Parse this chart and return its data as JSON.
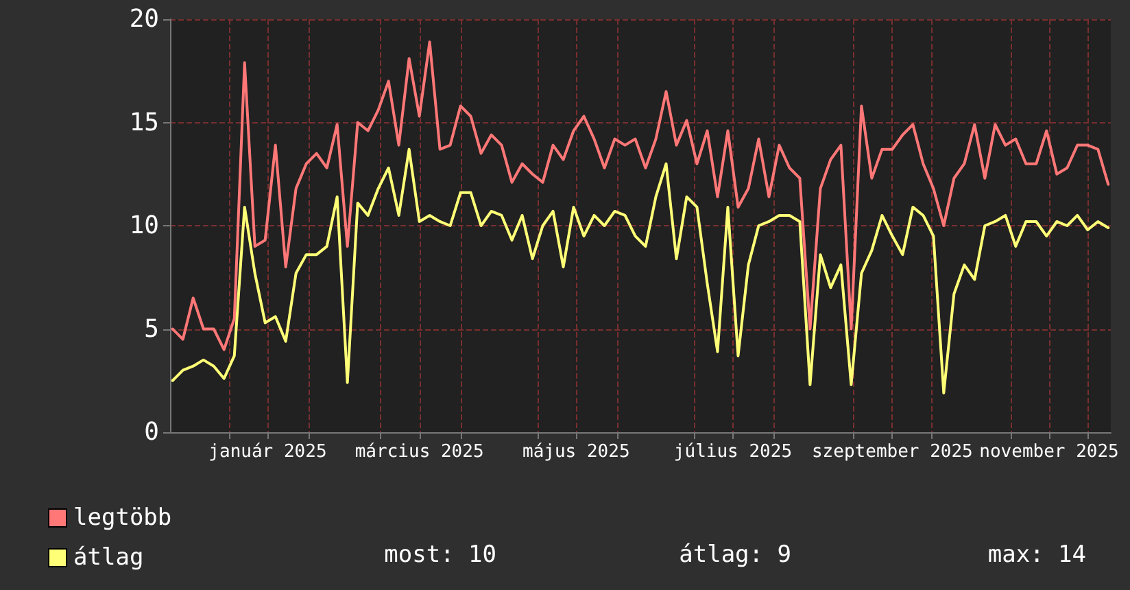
{
  "chart_data": {
    "type": "line",
    "x": [
      "2024-12-10",
      "2024-12-14",
      "2024-12-18",
      "2024-12-22",
      "2024-12-26",
      "2024-12-30",
      "2025-01-03",
      "2025-01-07",
      "2025-01-11",
      "2025-01-15",
      "2025-01-19",
      "2025-01-23",
      "2025-01-27",
      "2025-01-31",
      "2025-02-04",
      "2025-02-08",
      "2025-02-12",
      "2025-02-16",
      "2025-02-20",
      "2025-02-24",
      "2025-02-28",
      "2025-03-04",
      "2025-03-08",
      "2025-03-12",
      "2025-03-16",
      "2025-03-20",
      "2025-03-24",
      "2025-03-28",
      "2025-04-01",
      "2025-04-05",
      "2025-04-09",
      "2025-04-13",
      "2025-04-17",
      "2025-04-21",
      "2025-04-25",
      "2025-04-29",
      "2025-05-03",
      "2025-05-07",
      "2025-05-11",
      "2025-05-15",
      "2025-05-19",
      "2025-05-23",
      "2025-05-27",
      "2025-05-31",
      "2025-06-04",
      "2025-06-08",
      "2025-06-12",
      "2025-06-16",
      "2025-06-20",
      "2025-06-24",
      "2025-06-28",
      "2025-07-02",
      "2025-07-06",
      "2025-07-10",
      "2025-07-14",
      "2025-07-18",
      "2025-07-22",
      "2025-07-26",
      "2025-07-30",
      "2025-08-03",
      "2025-08-07",
      "2025-08-11",
      "2025-08-15",
      "2025-08-19",
      "2025-08-23",
      "2025-08-27",
      "2025-08-31",
      "2025-09-04",
      "2025-09-08",
      "2025-09-12",
      "2025-09-16",
      "2025-09-20",
      "2025-09-24",
      "2025-09-28",
      "2025-10-02",
      "2025-10-06",
      "2025-10-10",
      "2025-10-14",
      "2025-10-18",
      "2025-10-22",
      "2025-10-26",
      "2025-10-30",
      "2025-11-03",
      "2025-11-07",
      "2025-11-11",
      "2025-11-15",
      "2025-11-19",
      "2025-11-23",
      "2025-11-27",
      "2025-12-01",
      "2025-12-05",
      "2025-12-09"
    ],
    "series": [
      {
        "name": "legtöbb",
        "color": "#ff7777",
        "values": [
          5,
          4.5,
          6.5,
          5,
          5,
          4,
          5.5,
          17.9,
          9,
          9.3,
          13.9,
          8,
          11.8,
          13,
          13.5,
          12.8,
          14.9,
          9,
          15,
          14.6,
          15.6,
          17,
          13.9,
          18.1,
          15.3,
          18.9,
          13.7,
          13.9,
          15.8,
          15.3,
          13.5,
          14.4,
          13.9,
          12.1,
          13,
          12.5,
          12.1,
          13.9,
          13.2,
          14.6,
          15.3,
          14.2,
          12.8,
          14.2,
          13.9,
          14.2,
          12.8,
          14.2,
          16.5,
          13.9,
          15.1,
          13,
          14.6,
          11.4,
          14.6,
          10.9,
          11.8,
          14.2,
          11.4,
          13.9,
          12.8,
          12.3,
          5,
          11.8,
          13.2,
          13.9,
          5,
          15.8,
          12.3,
          13.7,
          13.7,
          14.4,
          14.9,
          13,
          11.8,
          10,
          12.3,
          13,
          14.9,
          12.3,
          14.9,
          13.9,
          14.2,
          13,
          13,
          14.6,
          12.5,
          12.8,
          13.9,
          13.9,
          13.7,
          12
        ]
      },
      {
        "name": "átlag",
        "color": "#ffff77",
        "values": [
          2.5,
          3,
          3.2,
          3.5,
          3.2,
          2.6,
          3.7,
          10.9,
          7.7,
          5.3,
          5.6,
          4.4,
          7.7,
          8.6,
          8.6,
          9,
          11.4,
          2.4,
          11.1,
          10.5,
          11.8,
          12.8,
          10.5,
          13.7,
          10.2,
          10.5,
          10.2,
          10,
          11.6,
          11.6,
          10,
          10.7,
          10.5,
          9.3,
          10.5,
          8.4,
          10,
          10.7,
          8,
          10.9,
          9.5,
          10.5,
          10,
          10.7,
          10.5,
          9.5,
          9,
          11.4,
          13,
          8.4,
          11.4,
          10.9,
          7.2,
          3.9,
          10.9,
          3.7,
          8.1,
          10,
          10.2,
          10.5,
          10.5,
          10.2,
          2.3,
          8.6,
          7,
          8.1,
          2.3,
          7.7,
          8.8,
          10.5,
          9.5,
          8.6,
          10.9,
          10.5,
          9.5,
          1.9,
          6.7,
          8.1,
          7.4,
          10,
          10.2,
          10.5,
          9,
          10.2,
          10.2,
          9.5,
          10.2,
          10,
          10.5,
          9.8,
          10.2,
          9.9
        ]
      }
    ],
    "xlim": [
      "2024-12-09",
      "2025-12-10"
    ],
    "xticks": [
      {
        "value": "2025-01-01",
        "label": null
      },
      {
        "value": "2025-01-16",
        "label": "január 2025"
      },
      {
        "value": "2025-02-01",
        "label": null
      },
      {
        "value": "2025-03-01",
        "label": null
      },
      {
        "value": "2025-03-16",
        "label": "március 2025"
      },
      {
        "value": "2025-04-01",
        "label": null
      },
      {
        "value": "2025-05-01",
        "label": null
      },
      {
        "value": "2025-05-16",
        "label": "május 2025"
      },
      {
        "value": "2025-06-01",
        "label": null
      },
      {
        "value": "2025-07-01",
        "label": null
      },
      {
        "value": "2025-07-16",
        "label": "július 2025"
      },
      {
        "value": "2025-08-01",
        "label": null
      },
      {
        "value": "2025-09-01",
        "label": null
      },
      {
        "value": "2025-09-16",
        "label": "szeptember 2025"
      },
      {
        "value": "2025-10-01",
        "label": null
      },
      {
        "value": "2025-11-01",
        "label": null
      },
      {
        "value": "2025-11-16",
        "label": "november 2025"
      },
      {
        "value": "2025-12-01",
        "label": null
      }
    ],
    "ylim": [
      0,
      20
    ],
    "yticks": [
      0,
      5,
      10,
      15,
      20
    ],
    "grid": true,
    "legend": "bottom left",
    "marker": "none",
    "line_style": "solid",
    "annotations": [
      "most: 10",
      "átlag: 9",
      "max: 14"
    ]
  }
}
